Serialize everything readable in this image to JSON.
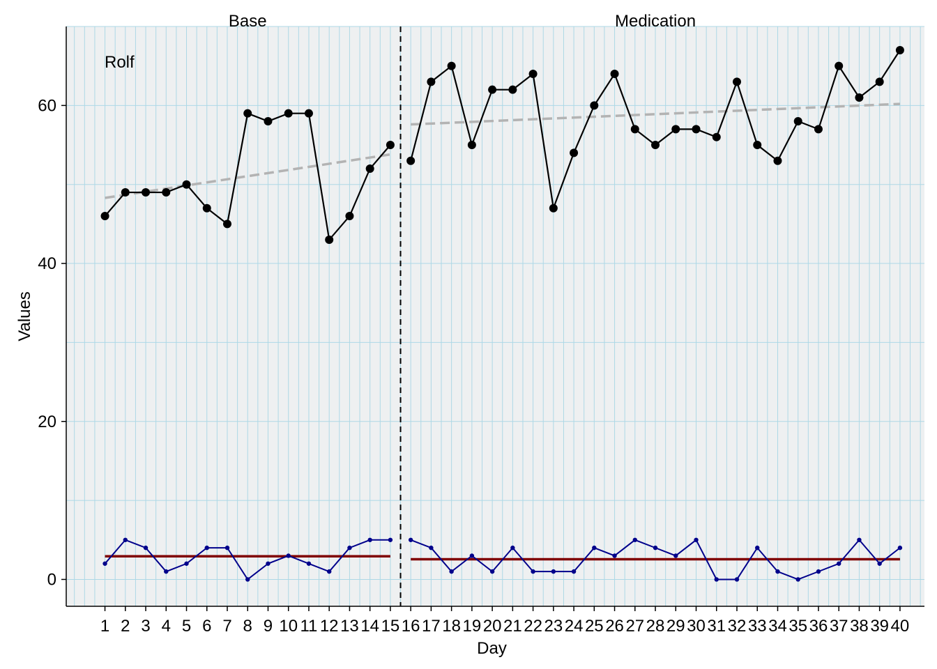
{
  "chart_data": {
    "type": "line",
    "xlabel": "Day",
    "ylabel": "Values",
    "case_label": "Rolf",
    "xlim": [
      -0.9,
      41.2
    ],
    "ylim": [
      -3.4,
      70
    ],
    "y_ticks": [
      0,
      20,
      40,
      60
    ],
    "grid": true,
    "phases": [
      {
        "name": "Base",
        "start": 1,
        "end": 15
      },
      {
        "name": "Medication",
        "start": 16,
        "end": 40
      }
    ],
    "phase_change_x": 15.5,
    "x": [
      1,
      2,
      3,
      4,
      5,
      6,
      7,
      8,
      9,
      10,
      11,
      12,
      13,
      14,
      15,
      16,
      17,
      18,
      19,
      20,
      21,
      22,
      23,
      24,
      25,
      26,
      27,
      28,
      29,
      30,
      31,
      32,
      33,
      34,
      35,
      36,
      37,
      38,
      39,
      40
    ],
    "x_tick_labels": [
      "1",
      "2",
      "3",
      "4",
      "5",
      "6",
      "7",
      "8",
      "9",
      "10",
      "11",
      "12",
      "13",
      "14",
      "15",
      "16",
      "17",
      "18",
      "19",
      "20",
      "21",
      "22",
      "23",
      "24",
      "25",
      "26",
      "27",
      "28",
      "29",
      "30",
      "31",
      "32",
      "33",
      "34",
      "35",
      "36",
      "37",
      "38",
      "39",
      "40"
    ],
    "series": [
      {
        "values": [
          46,
          49,
          49,
          49,
          50,
          47,
          45,
          59,
          58,
          59,
          59,
          43,
          46,
          52,
          55,
          53,
          63,
          65,
          55,
          62,
          62,
          64,
          47,
          54,
          60,
          64,
          57,
          55,
          57,
          57,
          56,
          63,
          55,
          53,
          58,
          57,
          65,
          61,
          63,
          67
        ],
        "color": "#000000"
      },
      {
        "values": [
          2,
          5,
          4,
          1,
          2,
          4,
          4,
          0,
          2,
          3,
          2,
          1,
          4,
          5,
          5,
          5,
          4,
          1,
          3,
          1,
          4,
          1,
          1,
          1,
          4,
          3,
          5,
          4,
          3,
          5,
          0,
          0,
          4,
          1,
          0,
          1,
          2,
          5,
          2,
          4
        ],
        "color": "#00008b"
      }
    ],
    "trend_lines": [
      {
        "x1": 1,
        "y1": 48.3,
        "x2": 15,
        "y2": 53.8,
        "color": "#b3b3b3",
        "style": "dashed"
      },
      {
        "x1": 16,
        "y1": 57.6,
        "x2": 40,
        "y2": 60.2,
        "color": "#b3b3b3",
        "style": "dashed"
      }
    ],
    "mean_lines": [
      {
        "x1": 1,
        "x2": 15,
        "y": 2.93,
        "color": "#800000"
      },
      {
        "x1": 16,
        "x2": 40,
        "y": 2.56,
        "color": "#800000"
      }
    ],
    "panel_background": "#eef0f1",
    "grid_color": "#add8e6"
  }
}
